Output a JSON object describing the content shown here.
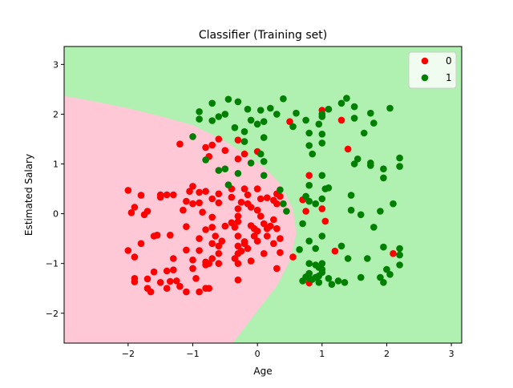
{
  "chart_data": {
    "type": "scatter",
    "title": "Classifier (Training set)",
    "xlabel": "Age",
    "ylabel": "Estimated Salary",
    "xlim": [
      -2.99,
      3.16
    ],
    "ylim": [
      -2.6,
      3.36
    ],
    "xticks": [
      -2,
      -1,
      0,
      1,
      2,
      3
    ],
    "yticks": [
      -2,
      -1,
      0,
      1,
      2,
      3
    ],
    "grid": false,
    "legend_position": "top-right",
    "decision_regions": [
      {
        "class": "0",
        "color": "#ffc8d6"
      },
      {
        "class": "1",
        "color": "#b0f0b0"
      }
    ],
    "decision_boundary": [
      [
        -2.99,
        2.37
      ],
      [
        -2.5,
        2.25
      ],
      [
        -2.0,
        2.12
      ],
      [
        -1.5,
        1.96
      ],
      [
        -1.0,
        1.78
      ],
      [
        -0.5,
        1.46
      ],
      [
        -0.2,
        1.2
      ],
      [
        0.1,
        0.94
      ],
      [
        0.35,
        0.6
      ],
      [
        0.55,
        0.1
      ],
      [
        0.6,
        -0.4
      ],
      [
        0.5,
        -0.95
      ],
      [
        0.3,
        -1.45
      ],
      [
        0.0,
        -1.95
      ],
      [
        -0.38,
        -2.6
      ]
    ],
    "series": [
      {
        "name": "0",
        "color": "#ff0000",
        "points": [
          [
            -2.0,
            0.47
          ],
          [
            -1.8,
            0.37
          ],
          [
            -1.9,
            0.13
          ],
          [
            -1.7,
            0.05
          ],
          [
            -1.75,
            -0.02
          ],
          [
            -1.95,
            0.02
          ],
          [
            -2.0,
            -0.74
          ],
          [
            -1.8,
            -0.6
          ],
          [
            -1.9,
            -0.87
          ],
          [
            -1.9,
            -1.3
          ],
          [
            -1.9,
            -1.37
          ],
          [
            -1.7,
            -1.31
          ],
          [
            -1.65,
            -1.57
          ],
          [
            -1.7,
            -1.5
          ],
          [
            -1.6,
            -1.17
          ],
          [
            -1.5,
            -1.38
          ],
          [
            -1.4,
            -1.5
          ],
          [
            -1.4,
            -1.15
          ],
          [
            -1.35,
            -1.36
          ],
          [
            -1.55,
            -0.43
          ],
          [
            -1.6,
            -0.45
          ],
          [
            -1.5,
            0.33
          ],
          [
            -1.5,
            0.38
          ],
          [
            -1.4,
            0.38
          ],
          [
            -1.3,
            0.38
          ],
          [
            -1.35,
            -0.43
          ],
          [
            -1.3,
            -0.9
          ],
          [
            -1.3,
            -1.13
          ],
          [
            -1.25,
            -1.35
          ],
          [
            -1.2,
            -1.46
          ],
          [
            -1.1,
            -1.57
          ],
          [
            -1.15,
            0.07
          ],
          [
            -1.1,
            0.25
          ],
          [
            -1.05,
            0.45
          ],
          [
            -1.0,
            0.55
          ],
          [
            -1.0,
            0.2
          ],
          [
            -1.1,
            -0.26
          ],
          [
            -1.1,
            -0.73
          ],
          [
            -1.0,
            -0.93
          ],
          [
            -1.0,
            -1.1
          ],
          [
            -0.95,
            -1.3
          ],
          [
            -0.9,
            -1.57
          ],
          [
            -0.8,
            -1.5
          ],
          [
            -0.75,
            -1.5
          ],
          [
            -0.9,
            -0.74
          ],
          [
            -0.9,
            -0.5
          ],
          [
            -0.8,
            -0.32
          ],
          [
            -0.85,
            0.03
          ],
          [
            -0.9,
            0.22
          ],
          [
            -0.9,
            0.43
          ],
          [
            -0.8,
            0.45
          ],
          [
            -0.7,
            0.3
          ],
          [
            -0.7,
            -0.07
          ],
          [
            -0.7,
            -0.27
          ],
          [
            -0.65,
            -0.45
          ],
          [
            -0.7,
            -0.6
          ],
          [
            -0.7,
            -0.9
          ],
          [
            -0.8,
            -1.03
          ],
          [
            -0.8,
            -0.97
          ],
          [
            -0.6,
            -1.0
          ],
          [
            -0.6,
            -0.8
          ],
          [
            -0.55,
            -0.55
          ],
          [
            -0.5,
            -0.25
          ],
          [
            -0.6,
            0.22
          ],
          [
            -0.6,
            0.4
          ],
          [
            -0.4,
            0.33
          ],
          [
            -0.4,
            0.5
          ],
          [
            -0.4,
            -0.18
          ],
          [
            -0.3,
            -0.05
          ],
          [
            -0.3,
            -0.16
          ],
          [
            -0.3,
            0.1
          ],
          [
            -0.35,
            -0.27
          ],
          [
            -0.3,
            -0.45
          ],
          [
            -0.35,
            -0.9
          ],
          [
            -0.3,
            -0.8
          ],
          [
            -0.3,
            -1.0
          ],
          [
            -0.3,
            -1.33
          ],
          [
            -0.2,
            -0.56
          ],
          [
            -0.25,
            0.23
          ],
          [
            -0.2,
            0.5
          ],
          [
            -0.15,
            0.38
          ],
          [
            -0.1,
            0.13
          ],
          [
            -0.1,
            -0.24
          ],
          [
            -0.05,
            -0.3
          ],
          [
            0.0,
            -0.35
          ],
          [
            0.0,
            0.07
          ],
          [
            0.05,
            -0.05
          ],
          [
            0.1,
            -0.2
          ],
          [
            0.15,
            -0.3
          ],
          [
            0.2,
            -0.25
          ],
          [
            0.25,
            -0.12
          ],
          [
            0.3,
            0.2
          ],
          [
            0.3,
            -0.3
          ],
          [
            0.35,
            -0.5
          ],
          [
            0.35,
            0.35
          ],
          [
            0.3,
            0.4
          ],
          [
            0.15,
            0.32
          ],
          [
            0.25,
            0.27
          ],
          [
            0.05,
            0.3
          ],
          [
            0.0,
            0.5
          ],
          [
            -0.15,
            0.2
          ],
          [
            -0.05,
            -0.45
          ],
          [
            0.0,
            -0.55
          ],
          [
            -0.2,
            -0.6
          ],
          [
            -0.25,
            -0.75
          ],
          [
            0.1,
            -0.8
          ],
          [
            0.25,
            -0.6
          ],
          [
            0.3,
            -1.1
          ],
          [
            0.15,
            -0.45
          ],
          [
            -0.6,
            -0.65
          ],
          [
            -0.1,
            -0.95
          ],
          [
            -0.15,
            -0.7
          ],
          [
            0.35,
            -0.78
          ],
          [
            -0.75,
            -1.0
          ],
          [
            -0.3,
            -0.65
          ],
          [
            -1.2,
            1.4
          ],
          [
            -0.8,
            1.33
          ],
          [
            -0.7,
            1.38
          ],
          [
            -0.6,
            1.5
          ],
          [
            -0.5,
            1.27
          ],
          [
            -0.3,
            1.1
          ],
          [
            -0.2,
            1.2
          ],
          [
            0.0,
            1.25
          ],
          [
            -0.75,
            1.15
          ],
          [
            -0.3,
            1.48
          ],
          [
            0.5,
            1.85
          ],
          [
            1.0,
            2.08
          ],
          [
            1.3,
            1.88
          ],
          [
            1.4,
            1.3
          ],
          [
            0.8,
            0.77
          ],
          [
            0.7,
            0.28
          ],
          [
            0.75,
            0.05
          ],
          [
            1.0,
            0.1
          ],
          [
            1.05,
            -0.15
          ],
          [
            0.55,
            -0.87
          ],
          [
            0.8,
            -1.39
          ],
          [
            1.2,
            -0.75
          ],
          [
            2.1,
            -0.8
          ]
        ]
      },
      {
        "name": "1",
        "color": "#008000",
        "points": [
          [
            -0.9,
            2.05
          ],
          [
            -0.9,
            1.9
          ],
          [
            -0.7,
            2.22
          ],
          [
            -0.5,
            2.0
          ],
          [
            -0.45,
            2.3
          ],
          [
            -0.3,
            2.25
          ],
          [
            -0.6,
            1.95
          ],
          [
            -0.7,
            1.87
          ],
          [
            -0.35,
            1.73
          ],
          [
            -0.2,
            1.65
          ],
          [
            -0.15,
            2.1
          ],
          [
            -0.1,
            1.88
          ],
          [
            -0.2,
            1.45
          ],
          [
            0.0,
            1.8
          ],
          [
            0.05,
            2.08
          ],
          [
            0.1,
            1.85
          ],
          [
            0.2,
            2.12
          ],
          [
            0.3,
            2.0
          ],
          [
            0.4,
            2.31
          ],
          [
            0.1,
            1.53
          ],
          [
            0.05,
            1.2
          ],
          [
            -0.1,
            1.02
          ],
          [
            -0.3,
            0.81
          ],
          [
            -0.5,
            0.9
          ],
          [
            -0.45,
            0.58
          ],
          [
            -1.0,
            1.55
          ],
          [
            -0.8,
            1.08
          ],
          [
            -0.6,
            0.87
          ],
          [
            0.1,
            0.77
          ],
          [
            0.1,
            1.05
          ],
          [
            0.35,
            0.48
          ],
          [
            0.4,
            0.2
          ],
          [
            0.45,
            0.05
          ],
          [
            0.55,
            1.75
          ],
          [
            0.75,
            1.88
          ],
          [
            0.6,
            2.02
          ],
          [
            0.8,
            1.62
          ],
          [
            0.95,
            1.8
          ],
          [
            1.0,
            1.95
          ],
          [
            1.0,
            1.6
          ],
          [
            1.0,
            2.0
          ],
          [
            1.1,
            2.1
          ],
          [
            1.3,
            2.22
          ],
          [
            1.38,
            2.32
          ],
          [
            1.5,
            2.15
          ],
          [
            1.5,
            1.92
          ],
          [
            1.75,
            2.02
          ],
          [
            1.8,
            1.82
          ],
          [
            1.65,
            1.62
          ],
          [
            2.05,
            2.12
          ],
          [
            1.0,
            1.42
          ],
          [
            0.8,
            1.37
          ],
          [
            0.85,
            1.2
          ],
          [
            1.5,
            1.0
          ],
          [
            1.55,
            1.1
          ],
          [
            1.75,
            1.02
          ],
          [
            1.75,
            0.97
          ],
          [
            1.95,
            0.9
          ],
          [
            1.95,
            0.72
          ],
          [
            2.2,
            1.12
          ],
          [
            2.2,
            0.95
          ],
          [
            1.0,
            0.77
          ],
          [
            0.8,
            0.57
          ],
          [
            1.05,
            0.5
          ],
          [
            1.1,
            0.52
          ],
          [
            0.8,
            0.25
          ],
          [
            0.75,
            0.35
          ],
          [
            1.0,
            0.3
          ],
          [
            0.9,
            0.2
          ],
          [
            1.45,
            0.37
          ],
          [
            1.45,
            0.07
          ],
          [
            1.6,
            -0.02
          ],
          [
            1.9,
            0.05
          ],
          [
            2.1,
            0.2
          ],
          [
            1.8,
            -0.27
          ],
          [
            0.7,
            -0.2
          ],
          [
            0.8,
            -0.55
          ],
          [
            1.0,
            -0.45
          ],
          [
            0.65,
            -0.72
          ],
          [
            0.9,
            -0.7
          ],
          [
            0.8,
            -1.0
          ],
          [
            0.9,
            -1.03
          ],
          [
            0.95,
            -1.08
          ],
          [
            1.0,
            -1.0
          ],
          [
            1.0,
            -1.12
          ],
          [
            1.1,
            -1.3
          ],
          [
            1.3,
            -0.65
          ],
          [
            1.4,
            -0.9
          ],
          [
            1.7,
            -0.9
          ],
          [
            1.95,
            -0.67
          ],
          [
            2.0,
            -1.12
          ],
          [
            2.2,
            -0.7
          ],
          [
            2.2,
            -0.83
          ],
          [
            2.2,
            -1.03
          ],
          [
            2.05,
            -1.22
          ],
          [
            1.95,
            -1.38
          ],
          [
            1.9,
            -1.28
          ],
          [
            1.6,
            -1.28
          ],
          [
            1.35,
            -1.38
          ],
          [
            1.15,
            -1.42
          ],
          [
            1.25,
            -1.35
          ],
          [
            0.95,
            -1.38
          ],
          [
            0.9,
            -1.28
          ],
          [
            0.75,
            -1.27
          ],
          [
            0.7,
            -1.35
          ],
          [
            0.8,
            -1.2
          ],
          [
            1.0,
            -1.18
          ],
          [
            0.85,
            -1.32
          ],
          [
            0.95,
            -1.25
          ],
          [
            0.8,
            -1.3
          ]
        ]
      }
    ]
  }
}
